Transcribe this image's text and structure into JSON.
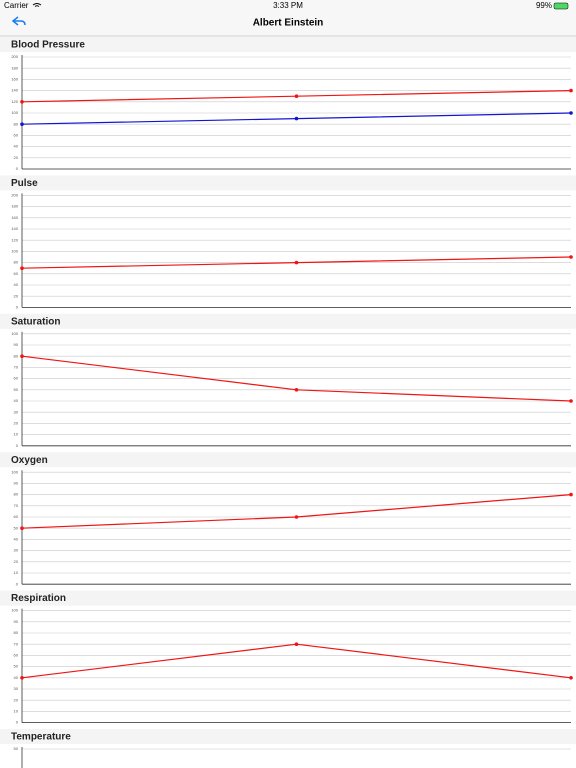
{
  "status_bar": {
    "carrier": "Carrier",
    "time": "3:33 PM",
    "battery": "99%"
  },
  "nav": {
    "title": "Albert Einstein"
  },
  "chart_data": [
    {
      "type": "line",
      "title": "Blood Pressure",
      "categories": [
        null,
        null,
        null
      ],
      "series": [
        {
          "color": "#f01414",
          "values": [
            120,
            130,
            140
          ]
        },
        {
          "color": "#1414d2",
          "values": [
            80,
            90,
            100
          ]
        }
      ],
      "ylim": [
        0,
        200
      ],
      "yticks": [
        0,
        20,
        40,
        60,
        80,
        100,
        120,
        140,
        160,
        180,
        200
      ],
      "grid": true
    },
    {
      "type": "line",
      "title": "Pulse",
      "categories": [
        null,
        null,
        null
      ],
      "series": [
        {
          "color": "#f01414",
          "values": [
            70,
            80,
            90
          ]
        }
      ],
      "ylim": [
        0,
        200
      ],
      "yticks": [
        0,
        20,
        40,
        60,
        80,
        100,
        120,
        140,
        160,
        180,
        200
      ],
      "grid": true
    },
    {
      "type": "line",
      "title": "Saturation",
      "categories": [
        null,
        null,
        null
      ],
      "series": [
        {
          "color": "#f01414",
          "values": [
            80,
            50,
            40
          ]
        }
      ],
      "ylim": [
        0,
        100
      ],
      "yticks": [
        0,
        10,
        20,
        30,
        40,
        50,
        60,
        70,
        80,
        90,
        100
      ],
      "grid": true
    },
    {
      "type": "line",
      "title": "Oxygen",
      "categories": [
        null,
        null,
        null
      ],
      "series": [
        {
          "color": "#f01414",
          "values": [
            50,
            60,
            80
          ]
        }
      ],
      "ylim": [
        0,
        100
      ],
      "yticks": [
        0,
        10,
        20,
        30,
        40,
        50,
        60,
        70,
        80,
        90,
        100
      ],
      "grid": true
    },
    {
      "type": "line",
      "title": "Respiration",
      "categories": [
        null,
        null,
        null
      ],
      "series": [
        {
          "color": "#f01414",
          "values": [
            40,
            70,
            40
          ]
        }
      ],
      "ylim": [
        0,
        100
      ],
      "yticks": [
        0,
        10,
        20,
        30,
        40,
        50,
        60,
        70,
        80,
        90,
        100
      ],
      "grid": true
    },
    {
      "type": "line",
      "title": "Temperature",
      "categories": [],
      "series": [],
      "ylim": [
        0,
        50
      ],
      "yticks": [
        50
      ],
      "grid": true
    }
  ]
}
